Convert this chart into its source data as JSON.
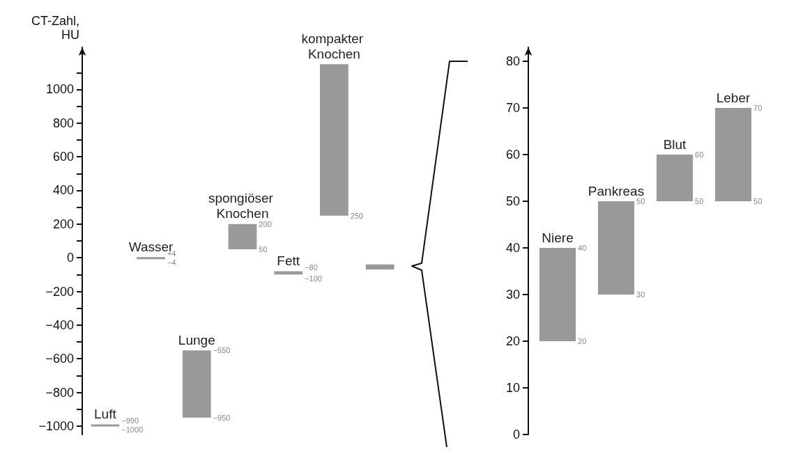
{
  "chart_data": [
    {
      "type": "bar",
      "ylabel": "CT-Zahl,\nHU",
      "categories": [
        "Luft",
        "Wasser",
        "Lunge",
        "spongiöser Knochen",
        "Fett",
        "kompakter Knochen",
        null
      ],
      "base": [
        -1000,
        -4,
        -950,
        50,
        -100,
        250,
        -70
      ],
      "values": [
        10,
        8,
        400,
        150,
        20,
        900,
        30
      ],
      "color": "#999999",
      "ylim": [
        -1050,
        1250
      ],
      "yticks": [
        -1000,
        {
          "value": -900,
          "label": null
        },
        -800,
        {
          "value": -700,
          "label": null
        },
        -600,
        {
          "value": -500,
          "label": null
        },
        -400,
        {
          "value": -300,
          "label": null
        },
        -200,
        {
          "value": -100,
          "label": null
        },
        0,
        {
          "value": 100,
          "label": null
        },
        200,
        {
          "value": 300,
          "label": null
        },
        400,
        {
          "value": 500,
          "label": null
        },
        600,
        {
          "value": 700,
          "label": null
        },
        800,
        {
          "value": 900,
          "label": null
        },
        1000,
        {
          "value": 1100,
          "label": null
        }
      ],
      "annotations": [
        {
          "text": "−990",
          "x": "Luft",
          "y": -990
        },
        {
          "text": "−1000",
          "x": "Luft",
          "y": -1000
        },
        {
          "text": "+4",
          "x": "Wasser",
          "y": 4
        },
        {
          "text": "−4",
          "x": "Wasser",
          "y": -4
        },
        {
          "text": "−550",
          "x": "Lunge",
          "y": -550
        },
        {
          "text": "−950",
          "x": "Lunge",
          "y": -950
        },
        {
          "text": "200",
          "x": "spongiöser Knochen",
          "y": 200
        },
        {
          "text": "50",
          "x": "spongiöser Knochen",
          "y": 50
        },
        {
          "text": "−80",
          "x": "Fett",
          "y": -80
        },
        {
          "text": "−100",
          "x": "Fett",
          "y": -100
        },
        {
          "text": "250",
          "x": "kompakter Knochen",
          "y": 250
        }
      ],
      "grid": false
    },
    {
      "type": "bar",
      "categories": [
        "Niere",
        "Pankreas",
        "Blut",
        "Leber"
      ],
      "base": [
        20,
        30,
        50,
        50
      ],
      "values": [
        20,
        20,
        10,
        20
      ],
      "color": "#999999",
      "ylim": [
        0,
        83
      ],
      "yticks": [
        0,
        10,
        20,
        30,
        40,
        50,
        60,
        70,
        80
      ],
      "annotations": [
        {
          "text": "40",
          "x": "Niere",
          "y": 40
        },
        {
          "text": "20",
          "x": "Niere",
          "y": 20
        },
        {
          "text": "50",
          "x": "Pankreas",
          "y": 50
        },
        {
          "text": "30",
          "x": "Pankreas",
          "y": 30
        },
        {
          "text": "60",
          "x": "Blut",
          "y": 60
        },
        {
          "text": "50",
          "x": "Blut",
          "y": 50
        },
        {
          "text": "70",
          "x": "Leber",
          "y": 70
        },
        {
          "text": "50",
          "x": "Leber",
          "y": 50
        }
      ],
      "grid": false
    }
  ]
}
